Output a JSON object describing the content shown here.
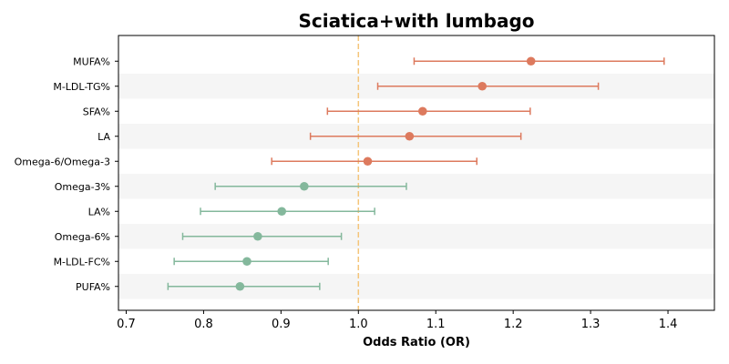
{
  "chart_data": {
    "type": "forest",
    "title": "Sciatica+with lumbago",
    "xlabel": "Odds Ratio (OR)",
    "xlim": [
      0.69,
      1.46
    ],
    "xticks": [
      0.7,
      0.8,
      0.9,
      1.0,
      1.1,
      1.2,
      1.3,
      1.4
    ],
    "xtick_labels": [
      "0.7",
      "0.8",
      "0.9",
      "1.0",
      "1.1",
      "1.2",
      "1.3",
      "1.4"
    ],
    "reference_line": 1.0,
    "reference_color": "#f5c57a",
    "colors": {
      "risk": "#dd7a5e",
      "protective": "#84b89c",
      "band": "#f5f5f5"
    },
    "rows": [
      {
        "label": "MUFA%",
        "or": 1.223,
        "lo": 1.072,
        "hi": 1.395
      },
      {
        "label": "M-LDL-TG%",
        "or": 1.16,
        "lo": 1.025,
        "hi": 1.31
      },
      {
        "label": "SFA%",
        "or": 1.083,
        "lo": 0.96,
        "hi": 1.222
      },
      {
        "label": "LA",
        "or": 1.066,
        "lo": 0.938,
        "hi": 1.21
      },
      {
        "label": "Omega-6/Omega-3",
        "or": 1.012,
        "lo": 0.888,
        "hi": 1.153
      },
      {
        "label": "Omega-3%",
        "or": 0.93,
        "lo": 0.815,
        "hi": 1.062
      },
      {
        "label": "LA%",
        "or": 0.901,
        "lo": 0.796,
        "hi": 1.021
      },
      {
        "label": "Omega-6%",
        "or": 0.87,
        "lo": 0.773,
        "hi": 0.978
      },
      {
        "label": "M-LDL-FC%",
        "or": 0.856,
        "lo": 0.762,
        "hi": 0.961
      },
      {
        "label": "PUFA%",
        "or": 0.847,
        "lo": 0.754,
        "hi": 0.95
      }
    ]
  }
}
